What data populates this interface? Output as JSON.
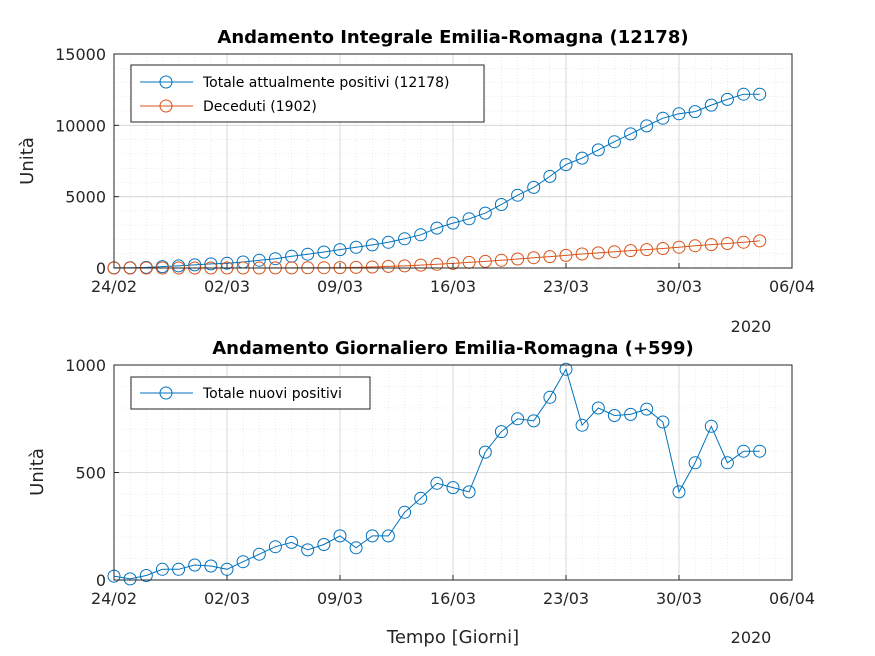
{
  "chart_data": [
    {
      "type": "line",
      "title": "Andamento Integrale Emilia-Romagna (12178)",
      "xlabel": "",
      "ylabel": "Unità",
      "year_label": "2020",
      "x_ticks": [
        "24/02",
        "02/03",
        "09/03",
        "16/03",
        "23/03",
        "30/03",
        "06/04"
      ],
      "y_ticks": [
        "0",
        "5000",
        "10000",
        "15000"
      ],
      "ylim": [
        0,
        15000
      ],
      "grid": true,
      "legend_position": "top-left",
      "x": [
        "24/02",
        "25/02",
        "26/02",
        "27/02",
        "28/02",
        "29/02",
        "01/03",
        "02/03",
        "03/03",
        "04/03",
        "05/03",
        "06/03",
        "07/03",
        "08/03",
        "09/03",
        "10/03",
        "11/03",
        "12/03",
        "13/03",
        "14/03",
        "15/03",
        "16/03",
        "17/03",
        "18/03",
        "19/03",
        "20/03",
        "21/03",
        "22/03",
        "23/03",
        "24/03",
        "25/03",
        "26/03",
        "27/03",
        "28/03",
        "29/03",
        "30/03",
        "31/03",
        "01/04",
        "02/04",
        "03/04",
        "04/04"
      ],
      "series": [
        {
          "name": "Totale attualmente positivi (12178)",
          "color": "#0072BD",
          "values": [
            18,
            23,
            45,
            95,
            145,
            215,
            285,
            335,
            420,
            540,
            655,
            820,
            970,
            1120,
            1290,
            1450,
            1620,
            1800,
            2050,
            2330,
            2800,
            3150,
            3450,
            3850,
            4450,
            5100,
            5650,
            6420,
            7250,
            7700,
            8280,
            8850,
            9400,
            9960,
            10500,
            10810,
            10960,
            11420,
            11820,
            12180,
            12180
          ]
        },
        {
          "name": "Deceduti (1902)",
          "color": "#D95319",
          "values": [
            0,
            0,
            0,
            0,
            0,
            0,
            0,
            0,
            0,
            2,
            4,
            8,
            12,
            18,
            30,
            45,
            70,
            110,
            150,
            200,
            260,
            320,
            390,
            460,
            540,
            630,
            720,
            800,
            880,
            980,
            1060,
            1140,
            1220,
            1290,
            1370,
            1460,
            1560,
            1640,
            1720,
            1810,
            1902
          ]
        }
      ]
    },
    {
      "type": "line",
      "title": "Andamento Giornaliero Emilia-Romagna (+599)",
      "xlabel": "Tempo [Giorni]",
      "ylabel": "Unità",
      "year_label": "2020",
      "x_ticks": [
        "24/02",
        "02/03",
        "09/03",
        "16/03",
        "23/03",
        "30/03",
        "06/04"
      ],
      "y_ticks": [
        "0",
        "500",
        "1000"
      ],
      "ylim": [
        0,
        1000
      ],
      "grid": true,
      "legend_position": "top-left",
      "x": [
        "24/02",
        "25/02",
        "26/02",
        "27/02",
        "28/02",
        "29/02",
        "01/03",
        "02/03",
        "03/03",
        "04/03",
        "05/03",
        "06/03",
        "07/03",
        "08/03",
        "09/03",
        "10/03",
        "11/03",
        "12/03",
        "13/03",
        "14/03",
        "15/03",
        "16/03",
        "17/03",
        "18/03",
        "19/03",
        "20/03",
        "21/03",
        "22/03",
        "23/03",
        "24/03",
        "25/03",
        "26/03",
        "27/03",
        "28/03",
        "29/03",
        "30/03",
        "31/03",
        "01/04",
        "02/04",
        "03/04",
        "04/04"
      ],
      "series": [
        {
          "name": "Totale nuovi positivi",
          "color": "#0072BD",
          "values": [
            18,
            5,
            21,
            50,
            50,
            70,
            65,
            50,
            85,
            120,
            155,
            175,
            140,
            165,
            205,
            150,
            205,
            205,
            315,
            380,
            450,
            430,
            410,
            595,
            690,
            750,
            740,
            850,
            980,
            720,
            800,
            765,
            770,
            795,
            735,
            410,
            545,
            715,
            545,
            599,
            599
          ]
        }
      ]
    }
  ]
}
